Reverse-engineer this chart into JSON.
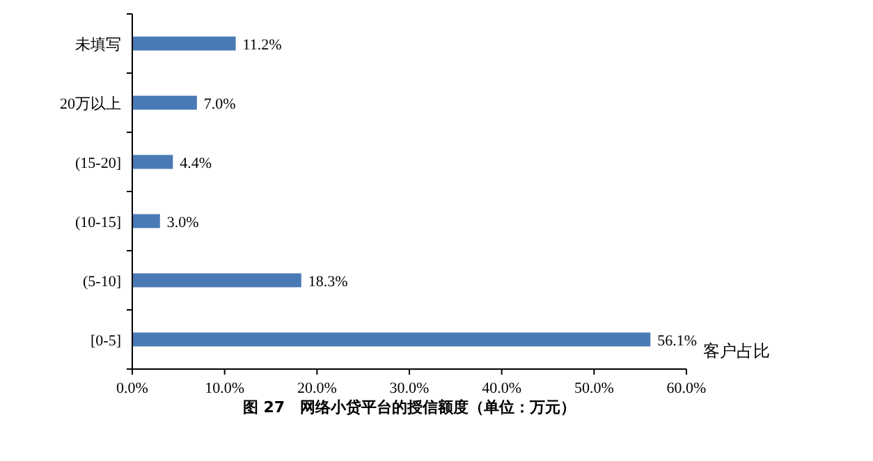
{
  "chart_data": {
    "type": "bar",
    "orientation": "horizontal",
    "title": "图 27　网络小贷平台的授信额度（单位：万元）",
    "xlabel": "客户占比",
    "categories": [
      "未填写",
      "20万以上",
      "(15-20]",
      "(10-15]",
      "(5-10]",
      "[0-5]"
    ],
    "values": [
      11.2,
      7.0,
      4.4,
      3.0,
      18.3,
      56.1
    ],
    "value_labels": [
      "11.2%",
      "7.0%",
      "4.4%",
      "3.0%",
      "18.3%",
      "56.1%"
    ],
    "color": "#4a7ab5",
    "xlim": [
      0,
      60
    ],
    "xticks": [
      {
        "value": 0,
        "label": "0.0%"
      },
      {
        "value": 10,
        "label": "10.0%"
      },
      {
        "value": 20,
        "label": "20.0%"
      },
      {
        "value": 30,
        "label": "30.0%"
      },
      {
        "value": 40,
        "label": "40.0%"
      },
      {
        "value": 50,
        "label": "50.0%"
      },
      {
        "value": 60,
        "label": "60.0%"
      }
    ],
    "grid": false
  }
}
